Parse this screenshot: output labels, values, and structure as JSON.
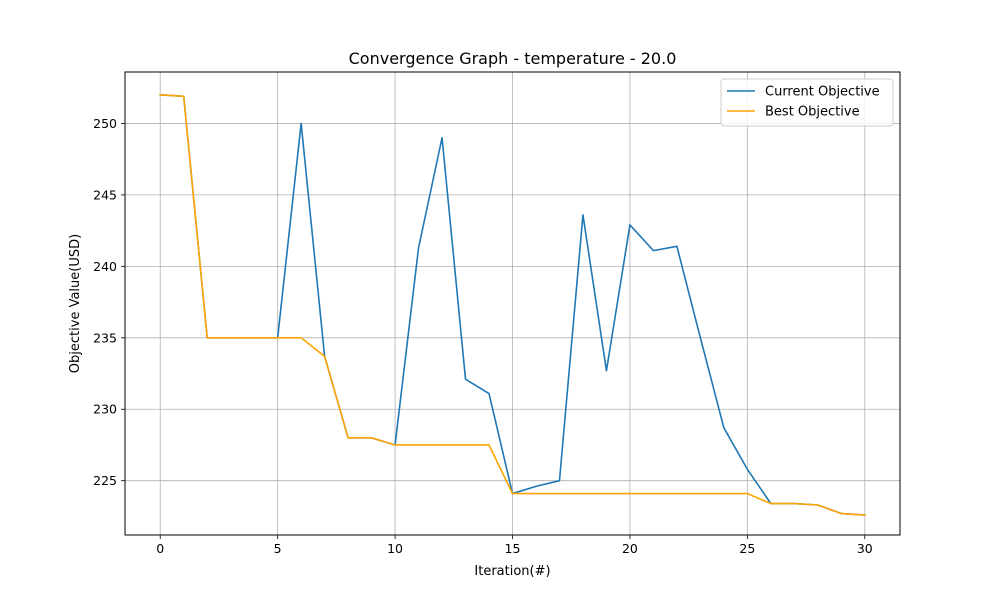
{
  "chart_data": {
    "type": "line",
    "title": "Convergence Graph - temperature - 20.0",
    "xlabel": "Iteration(#)",
    "ylabel": "Objective Value(USD)",
    "xlim": [
      -1.5,
      31.5
    ],
    "ylim": [
      221.2,
      253.6
    ],
    "xticks": [
      0,
      5,
      10,
      15,
      20,
      25,
      30
    ],
    "yticks": [
      225,
      230,
      235,
      240,
      245,
      250
    ],
    "grid": true,
    "legend_position": "top-right",
    "x": [
      0,
      1,
      2,
      3,
      4,
      5,
      6,
      7,
      8,
      9,
      10,
      11,
      12,
      13,
      14,
      15,
      16,
      17,
      18,
      19,
      20,
      21,
      22,
      23,
      24,
      25,
      26,
      27,
      28,
      29,
      30
    ],
    "series": [
      {
        "name": "Current Objective",
        "color": "#1f77b4",
        "values": [
          252.0,
          251.9,
          235.0,
          235.0,
          235.0,
          235.0,
          250.0,
          233.7,
          228.0,
          228.0,
          227.5,
          241.3,
          249.0,
          232.1,
          231.1,
          224.1,
          224.6,
          225.0,
          243.6,
          232.7,
          242.9,
          241.1,
          241.4,
          235.0,
          228.7,
          225.8,
          223.4,
          223.4,
          223.3,
          222.7,
          222.6
        ]
      },
      {
        "name": "Best Objective",
        "color": "#ffa500",
        "values": [
          252.0,
          251.9,
          235.0,
          235.0,
          235.0,
          235.0,
          235.0,
          233.7,
          228.0,
          228.0,
          227.5,
          227.5,
          227.5,
          227.5,
          227.5,
          224.1,
          224.1,
          224.1,
          224.1,
          224.1,
          224.1,
          224.1,
          224.1,
          224.1,
          224.1,
          224.1,
          223.4,
          223.4,
          223.3,
          222.7,
          222.6
        ]
      }
    ]
  }
}
